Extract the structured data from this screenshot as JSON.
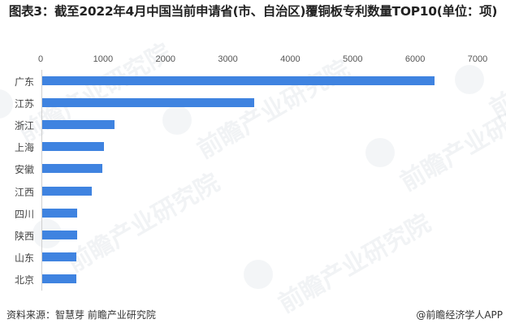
{
  "title": "图表3：截至2022年4月中国当前申请省(市、自治区)覆铜板专利数量TOP10(单位：项)",
  "footer": {
    "source": "资料来源：智慧芽 前瞻产业研究院",
    "credit": "@前瞻经济学人APP"
  },
  "watermark": "前瞻产业研究院",
  "colors": {
    "bar": "#3f83e0",
    "axis": "#d0d0d0",
    "text": "#444444"
  },
  "chart_data": {
    "type": "bar",
    "orientation": "horizontal",
    "title": "图表3：截至2022年4月中国当前申请省(市、自治区)覆铜板专利数量TOP10(单位：项)",
    "xlabel": "",
    "ylabel": "",
    "xlim": [
      0,
      7000
    ],
    "xticks": [
      0,
      1000,
      2000,
      3000,
      4000,
      5000,
      6000,
      7000
    ],
    "grid": false,
    "legend": null,
    "categories": [
      "广东",
      "江苏",
      "浙江",
      "上海",
      "安徽",
      "江西",
      "四川",
      "陕西",
      "山东",
      "北京"
    ],
    "values": [
      6290,
      3400,
      1160,
      990,
      960,
      795,
      565,
      565,
      550,
      550
    ],
    "unit": "项"
  }
}
